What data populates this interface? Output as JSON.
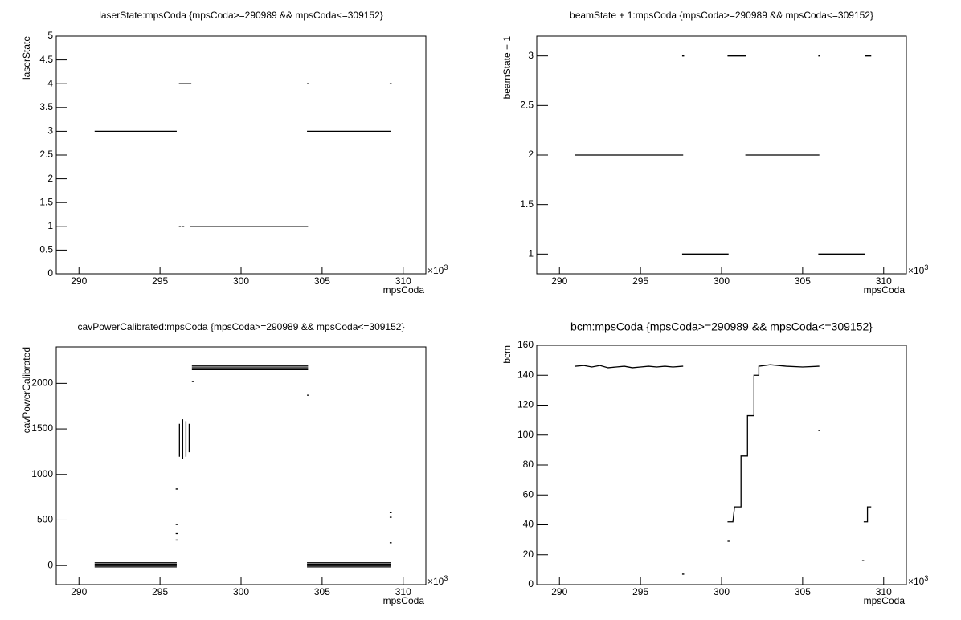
{
  "chart_data": [
    {
      "type": "line",
      "title": "laserState:mpsCoda {mpsCoda>=290989 && mpsCoda<=309152}",
      "x_label": "mpsCoda",
      "y_label": "laserState",
      "x_multiplier": "×10",
      "x_multiplier_exponent": "3",
      "xlim": [
        288.6,
        311.4
      ],
      "xticks": [
        290,
        295,
        300,
        305,
        310
      ],
      "ylim": [
        0,
        5
      ],
      "yticks": [
        0,
        0.5,
        1,
        1.5,
        2,
        2.5,
        3,
        3.5,
        4,
        4.5,
        5
      ],
      "series": [
        {
          "color": "#000000",
          "x": [
            291,
            296,
            null,
            296.2,
            296.9,
            null,
            296.2,
            null,
            296.4,
            null,
            296.9,
            304.1,
            null,
            304.1,
            309.2,
            null,
            304.1,
            null,
            309.2
          ],
          "values": [
            3,
            3,
            null,
            4,
            4,
            null,
            1,
            null,
            1,
            null,
            1,
            1,
            null,
            3,
            3,
            null,
            4,
            null,
            4
          ]
        }
      ]
    },
    {
      "type": "line",
      "title": "beamState + 1:mpsCoda {mpsCoda>=290989 && mpsCoda<=309152}",
      "x_label": "mpsCoda",
      "y_label": "beamState + 1",
      "x_multiplier": "×10",
      "x_multiplier_exponent": "3",
      "xlim": [
        288.6,
        311.4
      ],
      "xticks": [
        290,
        295,
        300,
        305,
        310
      ],
      "ylim": [
        0.8,
        3.2
      ],
      "yticks": [
        1,
        1.5,
        2,
        2.5,
        3
      ],
      "series": [
        {
          "color": "#000000",
          "x": [
            291,
            297.6,
            null,
            297.6,
            null,
            297.6,
            300.4,
            null,
            300.4,
            301.5,
            null,
            301.5,
            306,
            null,
            306,
            null,
            306,
            308.8,
            null,
            308.9,
            309.2
          ],
          "values": [
            2,
            2,
            null,
            3,
            null,
            1,
            1,
            null,
            3,
            3,
            null,
            2,
            2,
            null,
            3,
            null,
            1,
            1,
            null,
            3,
            3
          ]
        }
      ]
    },
    {
      "type": "line",
      "title": "cavPowerCalibrated:mpsCoda {mpsCoda>=290989 && mpsCoda<=309152}",
      "x_label": "mpsCoda",
      "y_label": "cavPowerCalibrated",
      "x_multiplier": "×10",
      "x_multiplier_exponent": "3",
      "xlim": [
        288.6,
        311.4
      ],
      "xticks": [
        290,
        295,
        300,
        305,
        310
      ],
      "ylim": [
        -210,
        2400
      ],
      "yticks": [
        0,
        500,
        1000,
        1500,
        2000
      ],
      "series": [
        {
          "color": "#000000",
          "x": [
            291,
            296,
            null,
            291,
            296,
            null,
            291,
            296,
            null,
            291,
            296,
            null,
            296,
            null,
            296,
            null,
            296,
            null,
            296,
            null,
            296.2,
            296.2,
            null,
            296.4,
            296.4,
            null,
            296.6,
            296.6,
            null,
            296.8,
            296.8,
            null,
            297,
            null,
            297,
            304.1,
            null,
            297,
            304.1,
            null,
            297,
            304.1,
            null,
            304.1,
            null,
            304.1,
            309.2,
            null,
            304.1,
            309.2,
            null,
            304.1,
            309.2,
            null,
            304.1,
            309.2,
            null,
            309.2,
            null,
            309.2,
            null,
            309.2
          ],
          "values": [
            30,
            30,
            null,
            15,
            15,
            null,
            0,
            0,
            null,
            -15,
            -15,
            null,
            840,
            null,
            450,
            null,
            350,
            null,
            280,
            null,
            1200,
            1550,
            null,
            1180,
            1600,
            null,
            1200,
            1580,
            null,
            1250,
            1550,
            null,
            2020,
            null,
            2190,
            2190,
            null,
            2170,
            2170,
            null,
            2150,
            2150,
            null,
            1870,
            null,
            30,
            30,
            null,
            15,
            15,
            null,
            0,
            0,
            null,
            -15,
            -15,
            null,
            580,
            null,
            530,
            null,
            250
          ]
        }
      ]
    },
    {
      "type": "line",
      "title": "bcm:mpsCoda {mpsCoda>=290989 && mpsCoda<=309152}",
      "x_label": "mpsCoda",
      "y_label": "bcm",
      "x_multiplier": "×10",
      "x_multiplier_exponent": "3",
      "xlim": [
        288.6,
        311.4
      ],
      "xticks": [
        290,
        295,
        300,
        305,
        310
      ],
      "ylim": [
        0,
        160
      ],
      "yticks": [
        0,
        20,
        40,
        60,
        80,
        100,
        120,
        140,
        160
      ],
      "series": [
        {
          "color": "#000000",
          "x": [
            291,
            291.5,
            292,
            292.5,
            293,
            293.5,
            294,
            294.5,
            295,
            295.5,
            296,
            296.5,
            297,
            297.6,
            null,
            297.6,
            null,
            300.4,
            null,
            300.4,
            300.7,
            300.8,
            301.2,
            301.2,
            301.6,
            301.6,
            302,
            302,
            302.3,
            302.3,
            303,
            304,
            305,
            306,
            null,
            306,
            null,
            308.7,
            null,
            308.8,
            309,
            309,
            309.2
          ],
          "values": [
            146,
            146.5,
            145.5,
            146.5,
            145,
            145.5,
            146,
            145,
            145.5,
            146,
            145.5,
            146,
            145.5,
            146,
            null,
            7,
            null,
            29,
            null,
            42,
            42,
            52,
            52,
            86,
            86,
            113,
            113,
            140,
            140,
            146,
            147,
            146,
            145.5,
            146,
            null,
            103,
            null,
            16,
            null,
            42,
            42,
            52,
            52
          ]
        }
      ]
    }
  ]
}
